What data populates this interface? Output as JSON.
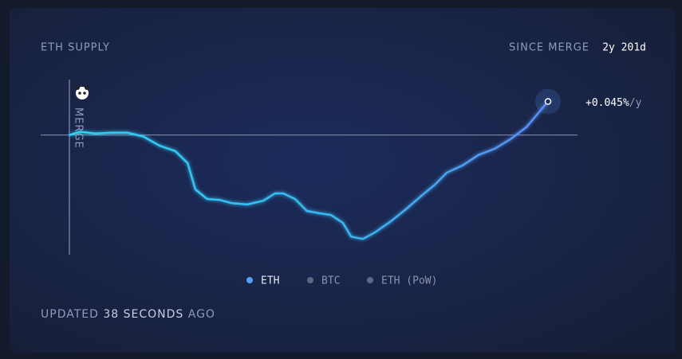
{
  "title": "ETH SUPPLY",
  "since_label": "SINCE MERGE",
  "since_value": "2y 201d",
  "rate_label": "+0.045%",
  "rate_unit": "/y",
  "merge_label": "MERGE",
  "legend": [
    "ETH",
    "BTC",
    "ETH (PoW)"
  ],
  "updated": {
    "prefix": "UPDATED",
    "time": "38 SECONDS",
    "suffix": "AGO"
  },
  "chart_data": {
    "type": "line",
    "xlim": [
      0,
      931
    ],
    "ylim": [
      -0.41,
      0.19
    ],
    "series": [
      {
        "name": "ETH",
        "color": "#5b9df5",
        "x": [
          0,
          20,
          51,
          82,
          113,
          144,
          175,
          206,
          230,
          245,
          268,
          292,
          315,
          346,
          377,
          400,
          416,
          439,
          462,
          486,
          509,
          532,
          548,
          571,
          594,
          625,
          656,
          687,
          711,
          734,
          765,
          796,
          827,
          858,
          889,
          931
        ],
        "values": [
          0,
          0.011,
          0.005,
          0.008,
          0.008,
          -0.005,
          -0.036,
          -0.055,
          -0.096,
          -0.186,
          -0.219,
          -0.222,
          -0.233,
          -0.238,
          -0.225,
          -0.2,
          -0.2,
          -0.219,
          -0.26,
          -0.268,
          -0.274,
          -0.301,
          -0.348,
          -0.356,
          -0.334,
          -0.296,
          -0.252,
          -0.205,
          -0.17,
          -0.129,
          -0.104,
          -0.068,
          -0.047,
          -0.014,
          0.027,
          0.115
        ]
      }
    ]
  }
}
